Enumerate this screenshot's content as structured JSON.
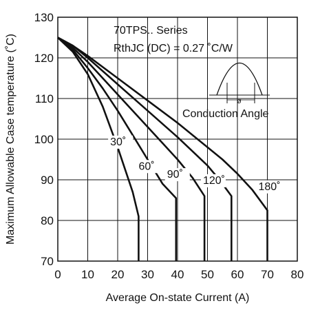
{
  "chart_data": {
    "type": "line",
    "title": "",
    "annotations": {
      "series_name": "70TPS.. Series",
      "rthjc": "RthJC (DC) = 0.27 ˚C/W",
      "inset_label": "Conduction Angle",
      "inset_symbol": "ø"
    },
    "xlabel": "Average On-state Current (A)",
    "ylabel": "Maximum Allowable Case temperature (˚C)",
    "xlim": [
      0,
      80
    ],
    "ylim": [
      70,
      130
    ],
    "x_ticks": [
      0,
      10,
      20,
      30,
      40,
      50,
      60,
      70,
      80
    ],
    "y_ticks": [
      70,
      80,
      90,
      100,
      110,
      120,
      130
    ],
    "grid": true,
    "legend": "none",
    "line_color": "#111111",
    "series": [
      {
        "name": "30˚",
        "points": [
          [
            0,
            125
          ],
          [
            5,
            121.5
          ],
          [
            10,
            116
          ],
          [
            15,
            108
          ],
          [
            20,
            98
          ],
          [
            25,
            87
          ],
          [
            27,
            81
          ],
          [
            27,
            70
          ]
        ]
      },
      {
        "name": "60˚",
        "points": [
          [
            0,
            125
          ],
          [
            5,
            122
          ],
          [
            10,
            117.5
          ],
          [
            15,
            112.5
          ],
          [
            20,
            107
          ],
          [
            25,
            101
          ],
          [
            30,
            95
          ],
          [
            35,
            89
          ],
          [
            39.5,
            85.5
          ],
          [
            39.5,
            70
          ]
        ]
      },
      {
        "name": "90˚",
        "points": [
          [
            0,
            125
          ],
          [
            5,
            122.5
          ],
          [
            10,
            119
          ],
          [
            15,
            115
          ],
          [
            20,
            111
          ],
          [
            25,
            107
          ],
          [
            30,
            103
          ],
          [
            35,
            99
          ],
          [
            40,
            95
          ],
          [
            45,
            90.5
          ],
          [
            49,
            86
          ],
          [
            49,
            70
          ]
        ]
      },
      {
        "name": "120˚",
        "points": [
          [
            0,
            125
          ],
          [
            5,
            123
          ],
          [
            10,
            120
          ],
          [
            20,
            113.5
          ],
          [
            30,
            107
          ],
          [
            40,
            100.5
          ],
          [
            45,
            97
          ],
          [
            50,
            93.5
          ],
          [
            54,
            90
          ],
          [
            58,
            86
          ],
          [
            58,
            70
          ]
        ]
      },
      {
        "name": "180˚",
        "points": [
          [
            0,
            125
          ],
          [
            5,
            123
          ],
          [
            10,
            120.5
          ],
          [
            20,
            115
          ],
          [
            30,
            109.5
          ],
          [
            40,
            104
          ],
          [
            50,
            98
          ],
          [
            55,
            95
          ],
          [
            60,
            91.5
          ],
          [
            65,
            87.5
          ],
          [
            70,
            82.5
          ],
          [
            70,
            70
          ]
        ]
      }
    ]
  }
}
